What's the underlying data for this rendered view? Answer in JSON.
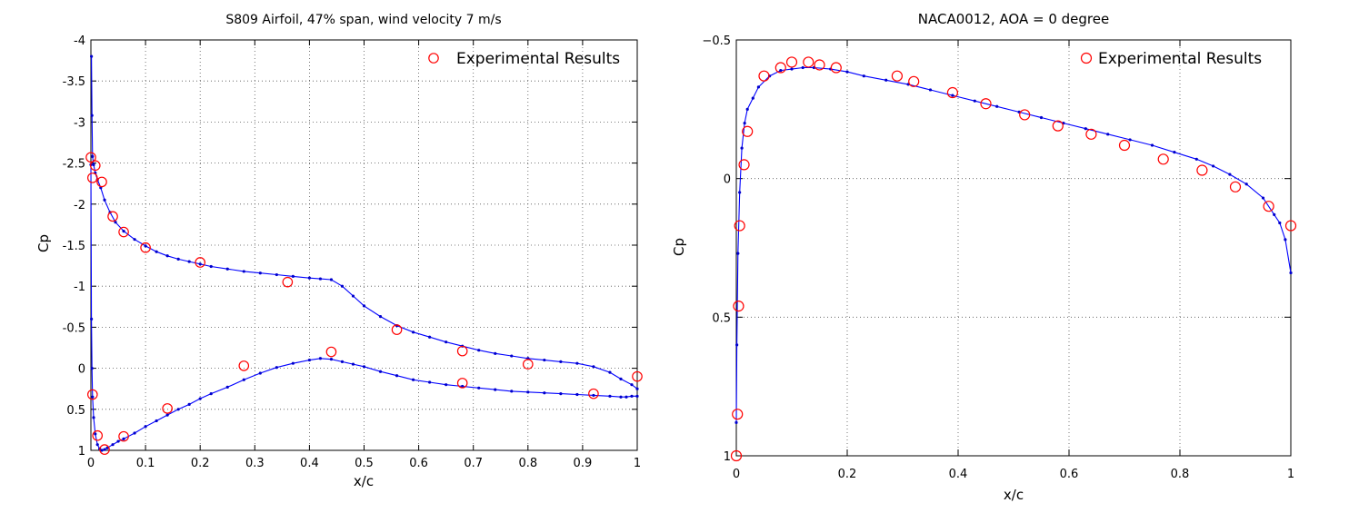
{
  "chart_data": [
    {
      "type": "line",
      "title": "S809 Airfoil, 47% span, wind velocity 7 m/s",
      "xlabel": "x/c",
      "ylabel": "Cp",
      "xlim": [
        0,
        1
      ],
      "ylim": [
        1,
        -4
      ],
      "y_reversed": true,
      "grid": true,
      "legend_position": "top-right",
      "xticks": [
        "0",
        "0.1",
        "0.2",
        "0.3",
        "0.4",
        "0.5",
        "0.6",
        "0.7",
        "0.8",
        "0.9",
        "1"
      ],
      "yticks": [
        "-4",
        "-3.5",
        "-3",
        "-2.5",
        "-2",
        "-1.5",
        "-1",
        "-0.5",
        "0",
        "0.5",
        "1"
      ],
      "series": [
        {
          "name": "",
          "role": "upper-surface-computed",
          "color": "#0000ff",
          "x": [
            0.001,
            0.002,
            0.003,
            0.005,
            0.008,
            0.012,
            0.018,
            0.025,
            0.035,
            0.045,
            0.06,
            0.08,
            0.1,
            0.12,
            0.14,
            0.16,
            0.18,
            0.2,
            0.22,
            0.25,
            0.28,
            0.31,
            0.34,
            0.37,
            0.4,
            0.42,
            0.44,
            0.46,
            0.48,
            0.5,
            0.53,
            0.56,
            0.59,
            0.62,
            0.65,
            0.68,
            0.71,
            0.74,
            0.77,
            0.8,
            0.83,
            0.86,
            0.89,
            0.92,
            0.95,
            0.97,
            0.99,
            1.0
          ],
          "y": [
            -3.8,
            -3.08,
            -2.58,
            -2.48,
            -2.38,
            -2.3,
            -2.2,
            -2.05,
            -1.9,
            -1.78,
            -1.67,
            -1.57,
            -1.49,
            -1.42,
            -1.37,
            -1.33,
            -1.3,
            -1.27,
            -1.24,
            -1.21,
            -1.18,
            -1.16,
            -1.14,
            -1.12,
            -1.1,
            -1.09,
            -1.08,
            -1.0,
            -0.88,
            -0.76,
            -0.63,
            -0.52,
            -0.44,
            -0.38,
            -0.32,
            -0.27,
            -0.22,
            -0.18,
            -0.15,
            -0.12,
            -0.1,
            -0.08,
            -0.06,
            -0.02,
            0.05,
            0.13,
            0.2,
            0.25
          ]
        },
        {
          "name": "",
          "role": "lower-surface-computed",
          "color": "#0000ff",
          "x": [
            0.0,
            0.001,
            0.002,
            0.003,
            0.005,
            0.008,
            0.012,
            0.016,
            0.02,
            0.025,
            0.03,
            0.04,
            0.05,
            0.06,
            0.08,
            0.1,
            0.12,
            0.14,
            0.16,
            0.18,
            0.2,
            0.22,
            0.25,
            0.28,
            0.31,
            0.34,
            0.37,
            0.4,
            0.42,
            0.44,
            0.46,
            0.48,
            0.5,
            0.53,
            0.56,
            0.59,
            0.62,
            0.65,
            0.68,
            0.71,
            0.74,
            0.77,
            0.8,
            0.83,
            0.86,
            0.89,
            0.92,
            0.95,
            0.97,
            0.98,
            0.99,
            1.0
          ],
          "y": [
            -2.48,
            -0.6,
            0.0,
            0.35,
            0.6,
            0.8,
            0.93,
            0.98,
            1.0,
            0.99,
            0.97,
            0.93,
            0.89,
            0.86,
            0.79,
            0.71,
            0.64,
            0.57,
            0.5,
            0.44,
            0.37,
            0.31,
            0.23,
            0.14,
            0.06,
            -0.01,
            -0.06,
            -0.1,
            -0.12,
            -0.11,
            -0.08,
            -0.05,
            -0.02,
            0.04,
            0.09,
            0.14,
            0.17,
            0.2,
            0.22,
            0.24,
            0.26,
            0.28,
            0.29,
            0.3,
            0.31,
            0.32,
            0.33,
            0.34,
            0.35,
            0.35,
            0.34,
            0.34
          ]
        },
        {
          "name": "Experimental Results",
          "role": "experimental",
          "color": "#ff0000",
          "marker": "circle",
          "x": [
            0.0,
            0.003,
            0.008,
            0.02,
            0.04,
            0.06,
            0.1,
            0.2,
            0.36,
            0.56,
            0.68,
            0.8,
            1.0,
            0.003,
            0.012,
            0.025,
            0.06,
            0.14,
            0.28,
            0.44,
            0.68,
            0.92
          ],
          "y": [
            -2.57,
            -2.32,
            -2.47,
            -2.27,
            -1.85,
            -1.66,
            -1.47,
            -1.29,
            -1.05,
            -0.47,
            -0.21,
            -0.05,
            0.1,
            0.32,
            0.82,
            0.99,
            0.83,
            0.49,
            -0.03,
            -0.2,
            0.18,
            0.31
          ]
        }
      ]
    },
    {
      "type": "line",
      "title": "NACA0012, AOA = 0 degree",
      "xlabel": "x/c",
      "ylabel": "Cp",
      "xlim": [
        0,
        1
      ],
      "ylim": [
        1,
        -0.5
      ],
      "y_reversed": true,
      "grid": true,
      "legend_position": "top-right",
      "xticks": [
        "0",
        "0.2",
        "0.4",
        "0.6",
        "0.8",
        "1"
      ],
      "yticks": [
        "−0.5",
        "0",
        "0.5",
        "1"
      ],
      "series": [
        {
          "name": "",
          "role": "computed",
          "color": "#0000ff",
          "x": [
            0.0,
            0.001,
            0.003,
            0.006,
            0.01,
            0.015,
            0.02,
            0.03,
            0.04,
            0.06,
            0.08,
            0.1,
            0.12,
            0.14,
            0.17,
            0.2,
            0.23,
            0.27,
            0.31,
            0.35,
            0.39,
            0.43,
            0.47,
            0.51,
            0.55,
            0.59,
            0.63,
            0.67,
            0.71,
            0.75,
            0.79,
            0.83,
            0.86,
            0.89,
            0.92,
            0.95,
            0.97,
            0.98,
            0.99,
            1.0
          ],
          "y": [
            0.88,
            0.6,
            0.27,
            0.05,
            -0.11,
            -0.2,
            -0.25,
            -0.29,
            -0.33,
            -0.37,
            -0.39,
            -0.395,
            -0.4,
            -0.4,
            -0.395,
            -0.385,
            -0.37,
            -0.355,
            -0.34,
            -0.32,
            -0.3,
            -0.28,
            -0.26,
            -0.24,
            -0.22,
            -0.2,
            -0.18,
            -0.16,
            -0.14,
            -0.12,
            -0.095,
            -0.07,
            -0.045,
            -0.015,
            0.02,
            0.07,
            0.13,
            0.16,
            0.22,
            0.34
          ]
        },
        {
          "name": "Experimental Results",
          "role": "experimental",
          "color": "#ff0000",
          "marker": "circle",
          "x": [
            0.0,
            0.002,
            0.004,
            0.006,
            0.014,
            0.02,
            0.05,
            0.08,
            0.1,
            0.13,
            0.15,
            0.18,
            0.29,
            0.32,
            0.39,
            0.45,
            0.52,
            0.58,
            0.64,
            0.7,
            0.77,
            0.84,
            0.9,
            0.96,
            1.0
          ],
          "y": [
            1.0,
            0.85,
            0.46,
            0.17,
            -0.05,
            -0.17,
            -0.37,
            -0.4,
            -0.42,
            -0.42,
            -0.41,
            -0.4,
            -0.37,
            -0.35,
            -0.31,
            -0.27,
            -0.23,
            -0.19,
            -0.16,
            -0.12,
            -0.07,
            -0.03,
            0.03,
            0.1,
            0.17
          ]
        }
      ]
    }
  ]
}
